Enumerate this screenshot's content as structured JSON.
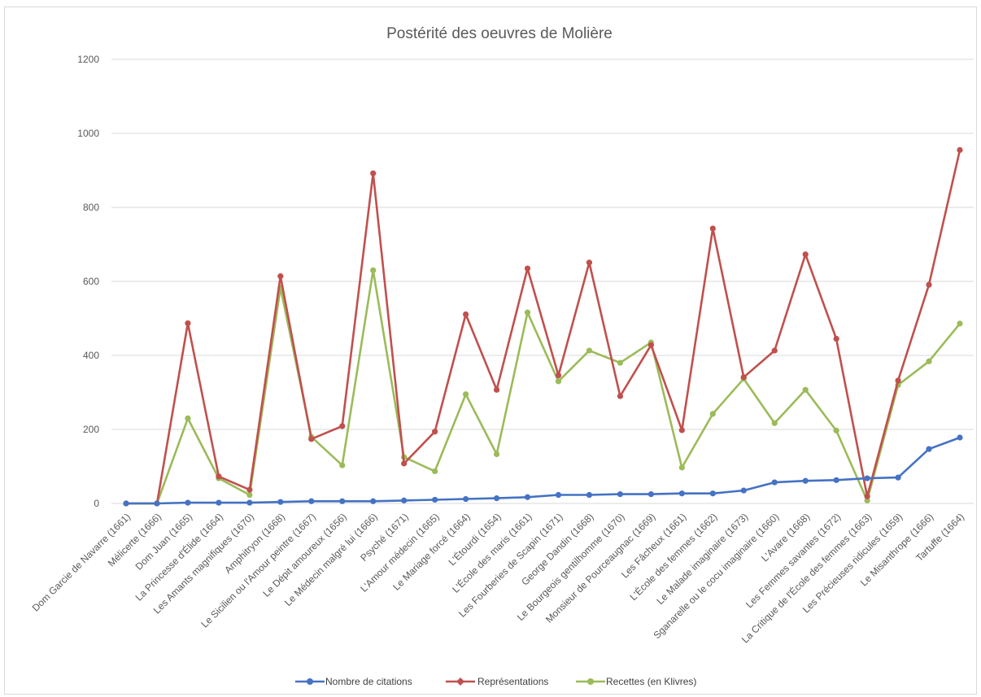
{
  "chart_data": {
    "type": "line",
    "title": "Postérité des oeuvres de Molière",
    "xlabel": "",
    "ylabel": "",
    "ylim": [
      0,
      1200
    ],
    "yticks": [
      "0",
      "200",
      "400",
      "600",
      "800",
      "1000",
      "1200"
    ],
    "grid": true,
    "legend": "bottom",
    "categories": [
      "Dom Garcie de Navarre (1661)",
      "Mélicerte (1666)",
      "Dom Juan (1665)",
      "La Princesse d'Élide (1664)",
      "Les Amants magnifiques (1670)",
      "Amphitryon (1668)",
      "Le Sicilien ou l'Amour peintre (1667)",
      "Le Dépit amoureux (1656)",
      "Le Médecin malgré lui (1666)",
      "Psyché (1671)",
      "L'Amour médecin (1665)",
      "Le Mariage forcé (1664)",
      "L'Étourdi (1654)",
      "L'École des maris (1661)",
      "Les Fourberies de Scapin (1671)",
      "George Dandin (1668)",
      "Le Bourgeois gentilhomme (1670)",
      "Monsieur de Pourceaugnac (1669)",
      "Les Fâcheux (1661)",
      "L'École des femmes (1662)",
      "Le Malade imaginaire (1673)",
      "Sganarelle ou le cocu imaginaire (1660)",
      "L'Avare (1668)",
      "Les Femmes savantes (1672)",
      "La Critique de l'École des femmes (1663)",
      "Les Précieuses ridicules (1659)",
      "Le Misanthrope (1666)",
      "Tartuffe (1664)"
    ],
    "series": [
      {
        "name": "Nombre de citations",
        "color": "#4472c4",
        "values": [
          0,
          0,
          2,
          2,
          2,
          4,
          6,
          6,
          6,
          8,
          10,
          12,
          14,
          17,
          23,
          23,
          25,
          25,
          27,
          27,
          35,
          57,
          61,
          63,
          68,
          70,
          147,
          178
        ]
      },
      {
        "name": "Représentations",
        "color": "#c0504d",
        "values": [
          0,
          0,
          487,
          73,
          37,
          614,
          174,
          209,
          892,
          108,
          194,
          511,
          307,
          635,
          346,
          651,
          290,
          428,
          198,
          743,
          341,
          413,
          673,
          445,
          19,
          332,
          591,
          955
        ]
      },
      {
        "name": "Recettes (en Klivres)",
        "color": "#9bbb59",
        "values": [
          0,
          0,
          230,
          68,
          23,
          583,
          180,
          103,
          630,
          125,
          87,
          295,
          133,
          516,
          330,
          413,
          380,
          435,
          97,
          242,
          337,
          217,
          307,
          197,
          8,
          320,
          384,
          486
        ]
      }
    ]
  }
}
